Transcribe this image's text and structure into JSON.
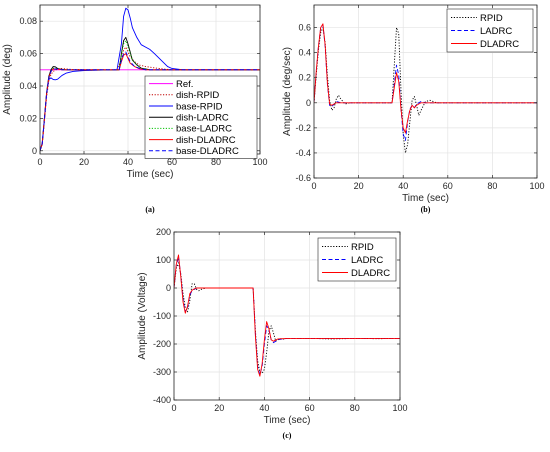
{
  "chart_data": [
    {
      "id": "a",
      "type": "line",
      "caption": "(a)",
      "xlabel": "Time (sec)",
      "ylabel": "Amplitude (deg)",
      "xlim": [
        0,
        100
      ],
      "ylim": [
        -0.002,
        0.09
      ],
      "xticks": [
        0,
        20,
        40,
        60,
        80,
        100
      ],
      "xtick_labels": [
        "0",
        "20",
        "40",
        "60",
        "80",
        "100"
      ],
      "yticks": [
        0,
        0.02,
        0.04,
        0.06,
        0.08
      ],
      "ytick_labels": [
        "0",
        "0.02",
        "0.04",
        "0.06",
        "0.08"
      ],
      "grid": true,
      "legend_position": "bottom-right",
      "series": [
        {
          "name": "Ref.",
          "color": "#ff00ff",
          "dash": "solid",
          "x": [
            0,
            100
          ],
          "y": [
            0.05,
            0.05
          ]
        },
        {
          "name": "dish-RPID",
          "color": "#c00000",
          "dash": "dotted",
          "x": [
            0,
            1,
            2,
            3,
            4,
            5,
            6,
            8,
            10,
            12,
            15,
            20,
            30,
            35,
            37,
            38,
            39,
            40,
            41,
            43,
            45,
            48,
            52,
            56,
            60,
            100
          ],
          "y": [
            0,
            0.004,
            0.018,
            0.033,
            0.043,
            0.047,
            0.049,
            0.0505,
            0.0508,
            0.0505,
            0.0502,
            0.05,
            0.05,
            0.05,
            0.056,
            0.062,
            0.064,
            0.061,
            0.058,
            0.055,
            0.053,
            0.052,
            0.0512,
            0.0505,
            0.05,
            0.05
          ]
        },
        {
          "name": "base-RPID",
          "color": "#0000ff",
          "dash": "solid",
          "x": [
            0,
            1,
            2,
            3,
            4,
            5,
            6,
            7,
            8,
            10,
            12,
            15,
            20,
            25,
            30,
            35,
            37,
            38,
            39,
            40,
            41,
            42,
            44,
            46,
            48,
            50,
            52,
            55,
            58,
            60,
            65,
            100
          ],
          "y": [
            0,
            0.005,
            0.02,
            0.035,
            0.044,
            0.045,
            0.044,
            0.0438,
            0.0442,
            0.0465,
            0.048,
            0.049,
            0.0495,
            0.0497,
            0.0499,
            0.05,
            0.066,
            0.083,
            0.088,
            0.087,
            0.082,
            0.076,
            0.07,
            0.0655,
            0.064,
            0.0625,
            0.06,
            0.056,
            0.052,
            0.0508,
            0.05,
            0.05
          ]
        },
        {
          "name": "dish-LADRC",
          "color": "#000000",
          "dash": "solid",
          "x": [
            0,
            1,
            2,
            3,
            4,
            5,
            6,
            7,
            8,
            10,
            12,
            15,
            20,
            30,
            36,
            37,
            38,
            39,
            40,
            41,
            42,
            44,
            46,
            48,
            50,
            100
          ],
          "y": [
            0,
            0.004,
            0.02,
            0.036,
            0.046,
            0.05,
            0.052,
            0.0518,
            0.0508,
            0.0502,
            0.05,
            0.05,
            0.05,
            0.05,
            0.05,
            0.06,
            0.068,
            0.07,
            0.066,
            0.061,
            0.056,
            0.053,
            0.051,
            0.0505,
            0.05,
            0.05
          ]
        },
        {
          "name": "base-LADRC",
          "color": "#00c000",
          "dash": "dotted",
          "x": [
            0,
            1,
            2,
            3,
            4,
            5,
            6,
            8,
            10,
            15,
            20,
            30,
            36,
            37,
            38,
            39,
            40,
            41,
            42,
            44,
            46,
            50,
            100
          ],
          "y": [
            0,
            0.004,
            0.019,
            0.035,
            0.045,
            0.049,
            0.051,
            0.0508,
            0.0502,
            0.05,
            0.05,
            0.05,
            0.05,
            0.059,
            0.066,
            0.068,
            0.064,
            0.06,
            0.056,
            0.053,
            0.0508,
            0.05,
            0.05
          ]
        },
        {
          "name": "dish-DLADRC",
          "color": "#ff0000",
          "dash": "solid",
          "x": [
            0,
            1,
            2,
            3,
            4,
            5,
            6,
            8,
            10,
            15,
            20,
            30,
            36,
            37,
            38,
            39,
            40,
            41,
            43,
            45,
            48,
            100
          ],
          "y": [
            0,
            0.004,
            0.019,
            0.035,
            0.045,
            0.049,
            0.0505,
            0.0505,
            0.05,
            0.05,
            0.05,
            0.05,
            0.05,
            0.055,
            0.059,
            0.06,
            0.057,
            0.054,
            0.052,
            0.0507,
            0.05,
            0.05
          ]
        },
        {
          "name": "base-DLADRC",
          "color": "#0000ff",
          "dash": "dashed",
          "x": [
            0,
            1,
            2,
            3,
            4,
            5,
            6,
            8,
            10,
            15,
            20,
            30,
            36,
            37,
            38,
            39,
            40,
            41,
            43,
            45,
            48,
            100
          ],
          "y": [
            0,
            0.004,
            0.019,
            0.035,
            0.045,
            0.049,
            0.0505,
            0.0505,
            0.05,
            0.05,
            0.05,
            0.05,
            0.05,
            0.056,
            0.06,
            0.061,
            0.058,
            0.055,
            0.052,
            0.051,
            0.05,
            0.05
          ]
        }
      ]
    },
    {
      "id": "b",
      "type": "line",
      "caption": "(b)",
      "xlabel": "Time (sec)",
      "ylabel": "Amplitude (deg/sec)",
      "xlim": [
        0,
        100
      ],
      "ylim": [
        -0.6,
        0.78
      ],
      "xticks": [
        0,
        20,
        40,
        60,
        80,
        100
      ],
      "xtick_labels": [
        "0",
        "20",
        "40",
        "60",
        "80",
        "100"
      ],
      "yticks": [
        -0.6,
        -0.4,
        -0.2,
        0,
        0.2,
        0.4,
        0.6
      ],
      "ytick_labels": [
        "-0.6",
        "-0.4",
        "-0.2",
        "0",
        "0.2",
        "0.4",
        "0.6"
      ],
      "grid": true,
      "legend_position": "top-right",
      "series": [
        {
          "name": "RPID",
          "color": "#000000",
          "dash": "dotted",
          "x": [
            0,
            1,
            2,
            3,
            4,
            5,
            6,
            7,
            8,
            9,
            10,
            11,
            12,
            14,
            16,
            20,
            30,
            35,
            36,
            37,
            38,
            39,
            40,
            41,
            42,
            43,
            44,
            45,
            46,
            47,
            48,
            50,
            52,
            55,
            60,
            70,
            80,
            100
          ],
          "y": [
            0,
            0.22,
            0.42,
            0.56,
            0.6,
            0.48,
            0.22,
            0.02,
            -0.06,
            -0.04,
            0.03,
            0.06,
            0.03,
            -0.01,
            0,
            0,
            0,
            0,
            0.3,
            0.6,
            0.55,
            0.1,
            -0.25,
            -0.4,
            -0.33,
            -0.15,
            0.02,
            0.05,
            -0.02,
            -0.1,
            -0.06,
            0.01,
            0.02,
            0,
            0,
            0,
            0,
            0
          ]
        },
        {
          "name": "LADRC",
          "color": "#0000ff",
          "dash": "dashed",
          "x": [
            0,
            1,
            2,
            3,
            4,
            5,
            6,
            7,
            8,
            9,
            10,
            12,
            15,
            20,
            30,
            35,
            36,
            37,
            38,
            39,
            40,
            41,
            42,
            43,
            44,
            45,
            46,
            48,
            50,
            55,
            60,
            100
          ],
          "y": [
            0,
            0.25,
            0.45,
            0.6,
            0.62,
            0.45,
            0.15,
            -0.02,
            -0.03,
            -0.01,
            0.01,
            0,
            0,
            0,
            0,
            0,
            0.15,
            0.3,
            0.22,
            -0.05,
            -0.25,
            -0.3,
            -0.15,
            -0.05,
            -0.02,
            -0.04,
            -0.01,
            0.01,
            0,
            0,
            0,
            0
          ]
        },
        {
          "name": "DLADRC",
          "color": "#ff0000",
          "dash": "solid",
          "x": [
            0,
            1,
            2,
            3,
            4,
            5,
            6,
            7,
            8,
            9,
            10,
            12,
            15,
            20,
            30,
            35,
            36,
            37,
            38,
            39,
            40,
            41,
            42,
            43,
            44,
            45,
            46,
            48,
            50,
            55,
            60,
            100
          ],
          "y": [
            0,
            0.25,
            0.45,
            0.6,
            0.63,
            0.46,
            0.16,
            -0.01,
            -0.02,
            -0.01,
            0,
            0,
            0,
            0,
            0,
            0,
            0.12,
            0.24,
            0.17,
            -0.05,
            -0.2,
            -0.24,
            -0.14,
            -0.06,
            -0.02,
            -0.04,
            -0.02,
            0,
            0,
            0,
            0,
            0
          ]
        }
      ]
    },
    {
      "id": "c",
      "type": "line",
      "caption": "(c)",
      "xlabel": "Time (sec)",
      "ylabel": "Amplitude (Voltage)",
      "xlim": [
        0,
        100
      ],
      "ylim": [
        -400,
        200
      ],
      "xticks": [
        0,
        20,
        40,
        60,
        80,
        100
      ],
      "xtick_labels": [
        "0",
        "20",
        "40",
        "60",
        "80",
        "100"
      ],
      "yticks": [
        -400,
        -300,
        -200,
        -100,
        0,
        100,
        200
      ],
      "ytick_labels": [
        "-400",
        "-300",
        "-200",
        "-100",
        "0",
        "100",
        "200"
      ],
      "grid": true,
      "legend_position": "top-right",
      "series": [
        {
          "name": "RPID",
          "color": "#000000",
          "dash": "dotted",
          "x": [
            0,
            1,
            2,
            3,
            4,
            5,
            6,
            7,
            8,
            9,
            10,
            11,
            12,
            14,
            16,
            20,
            30,
            35,
            36,
            37,
            38,
            39,
            40,
            41,
            42,
            43,
            44,
            45,
            46,
            47,
            48,
            50,
            55,
            60,
            70,
            80,
            90,
            100
          ],
          "y": [
            0,
            70,
            90,
            50,
            -20,
            -70,
            -85,
            -45,
            15,
            15,
            -5,
            -10,
            -5,
            0,
            0,
            0,
            0,
            0,
            -150,
            -260,
            -300,
            -305,
            -290,
            -230,
            -155,
            -135,
            -160,
            -190,
            -185,
            -180,
            -183,
            -180,
            -180,
            -180,
            -182,
            -180,
            -181,
            -180
          ]
        },
        {
          "name": "LADRC",
          "color": "#0000ff",
          "dash": "dashed",
          "x": [
            0,
            1,
            2,
            3,
            4,
            5,
            6,
            7,
            8,
            9,
            10,
            12,
            15,
            20,
            30,
            35,
            36,
            37,
            38,
            39,
            40,
            41,
            42,
            43,
            44,
            46,
            48,
            50,
            55,
            60,
            100
          ],
          "y": [
            0,
            80,
            110,
            45,
            -40,
            -85,
            -70,
            -25,
            -10,
            -5,
            0,
            0,
            0,
            0,
            0,
            0,
            -160,
            -280,
            -310,
            -280,
            -200,
            -135,
            -150,
            -185,
            -195,
            -185,
            -182,
            -180,
            -180,
            -180,
            -180
          ]
        },
        {
          "name": "DLADRC",
          "color": "#ff0000",
          "dash": "solid",
          "x": [
            0,
            1,
            2,
            3,
            4,
            5,
            6,
            7,
            8,
            9,
            10,
            12,
            15,
            20,
            30,
            35,
            36,
            37,
            38,
            39,
            40,
            41,
            42,
            43,
            44,
            46,
            48,
            50,
            55,
            60,
            100
          ],
          "y": [
            0,
            85,
            118,
            40,
            -50,
            -90,
            -65,
            -20,
            -8,
            -3,
            0,
            0,
            0,
            0,
            0,
            0,
            -170,
            -290,
            -315,
            -270,
            -185,
            -120,
            -145,
            -185,
            -190,
            -182,
            -181,
            -180,
            -180,
            -180,
            -180
          ]
        }
      ]
    }
  ]
}
